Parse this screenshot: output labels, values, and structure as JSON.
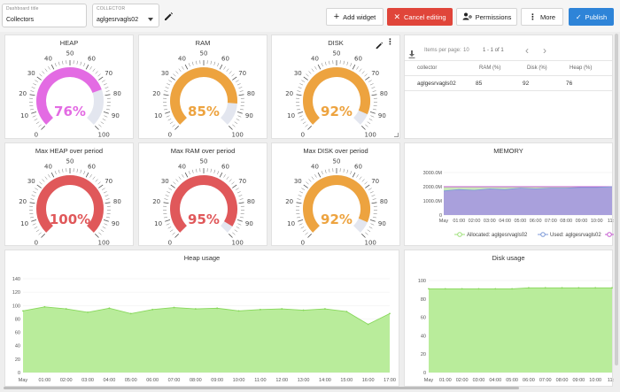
{
  "header": {
    "dashboard_title_label": "Dashboard title",
    "dashboard_title_value": "Collectors",
    "collector_label": "COLLECTOR",
    "collector_value": "aglgesrvagls02"
  },
  "toolbar": {
    "add_widget": "Add widget",
    "cancel_editing": "Cancel editing",
    "permissions": "Permissions",
    "more": "More",
    "publish": "Publish"
  },
  "gauges": {
    "heap": {
      "title": "HEAP",
      "value": 76,
      "display": "76%",
      "color": "#e36be3"
    },
    "ram": {
      "title": "RAM",
      "value": 85,
      "display": "85%",
      "color": "#eda33f"
    },
    "disk": {
      "title": "DISK",
      "value": 92,
      "display": "92%",
      "color": "#eda33f"
    },
    "max_heap": {
      "title": "Max HEAP over period",
      "value": 100,
      "display": "100%",
      "color": "#e0585a"
    },
    "max_ram": {
      "title": "Max RAM over period",
      "value": 95,
      "display": "95%",
      "color": "#e0585a"
    },
    "max_disk": {
      "title": "Max DISK over period",
      "value": 92,
      "display": "92%",
      "color": "#eda33f"
    }
  },
  "gauge_ticks": [
    "0",
    "10",
    "20",
    "30",
    "40",
    "50",
    "60",
    "70",
    "80",
    "90",
    "100"
  ],
  "table": {
    "items_per_page_label": "Items per page:",
    "items_per_page_value": "10",
    "range": "1 - 1 of 1",
    "columns": [
      "collector",
      "RAM (%)",
      "Disk (%)",
      "Heap (%)"
    ],
    "rows": [
      [
        "aglgesrvagls02",
        "85",
        "92",
        "76"
      ]
    ]
  },
  "memory_chart": {
    "title": "MEMORY",
    "y_ticks": [
      "0",
      "1000.0M",
      "2000.0M",
      "3000.0M"
    ],
    "x_ticks": [
      "May",
      "01:00",
      "02:00",
      "03:00",
      "04:00",
      "05:00",
      "06:00",
      "07:00",
      "08:00",
      "09:00",
      "10:00",
      "11:0"
    ],
    "legend": [
      "Allocated: aglgesrvagls02",
      "Used: aglgesrvagls02"
    ],
    "colors": {
      "allocated": "#9ee07a",
      "used": "#7c9ad8",
      "heap_line": "#c55bd0"
    }
  },
  "heap_chart": {
    "title": "Heap usage",
    "y_ticks": [
      "0",
      "20",
      "40",
      "60",
      "80",
      "100",
      "120",
      "140"
    ],
    "x_ticks": [
      "May",
      "01:00",
      "02:00",
      "03:00",
      "04:00",
      "05:00",
      "06:00",
      "07:00",
      "08:00",
      "09:00",
      "10:00",
      "11:00",
      "12:00",
      "13:00",
      "14:00",
      "15:00",
      "16:00",
      "17:00"
    ],
    "color": "#88d85c"
  },
  "disk_chart": {
    "title": "Disk usage",
    "y_ticks": [
      "0",
      "20",
      "40",
      "60",
      "80",
      "100"
    ],
    "x_ticks": [
      "May",
      "01:00",
      "02:00",
      "03:00",
      "04:00",
      "05:00",
      "06:00",
      "07:00",
      "08:00",
      "09:00",
      "10:00",
      "11:0"
    ],
    "color": "#88d85c"
  },
  "chart_data": [
    {
      "type": "area",
      "title": "Heap usage",
      "ylim": [
        0,
        140
      ],
      "x": [
        "May",
        "01:00",
        "02:00",
        "03:00",
        "04:00",
        "05:00",
        "06:00",
        "07:00",
        "08:00",
        "09:00",
        "10:00",
        "11:00",
        "12:00",
        "13:00",
        "14:00",
        "15:00",
        "16:00",
        "17:00"
      ],
      "series": [
        {
          "values": [
            92,
            98,
            95,
            90,
            96,
            88,
            94,
            97,
            95,
            96,
            92,
            94,
            95,
            93,
            95,
            91,
            72,
            88
          ]
        }
      ]
    },
    {
      "type": "area",
      "title": "Disk usage",
      "ylim": [
        0,
        100
      ],
      "x": [
        "May",
        "01:00",
        "02:00",
        "03:00",
        "04:00",
        "05:00",
        "06:00",
        "07:00",
        "08:00",
        "09:00",
        "10:00",
        "11:0"
      ],
      "series": [
        {
          "values": [
            91,
            91,
            91,
            91,
            91,
            91,
            92,
            92,
            92,
            92,
            92,
            92
          ]
        }
      ]
    },
    {
      "type": "area",
      "title": "MEMORY",
      "ylim": [
        0,
        3000
      ],
      "x": [
        "May",
        "01:00",
        "02:00",
        "03:00",
        "04:00",
        "05:00",
        "06:00",
        "07:00",
        "08:00",
        "09:00",
        "10:00",
        "11:0"
      ],
      "series": [
        {
          "name": "Allocated: aglgesrvagls02",
          "values": [
            2000,
            2000,
            2000,
            2000,
            2000,
            2000,
            2000,
            2000,
            2000,
            2000,
            2000,
            2000
          ]
        },
        {
          "name": "Used: aglgesrvagls02",
          "values": [
            1700,
            1800,
            1750,
            1850,
            1800,
            1900,
            1850,
            1900,
            1900,
            1950,
            1950,
            2000
          ]
        }
      ]
    }
  ]
}
